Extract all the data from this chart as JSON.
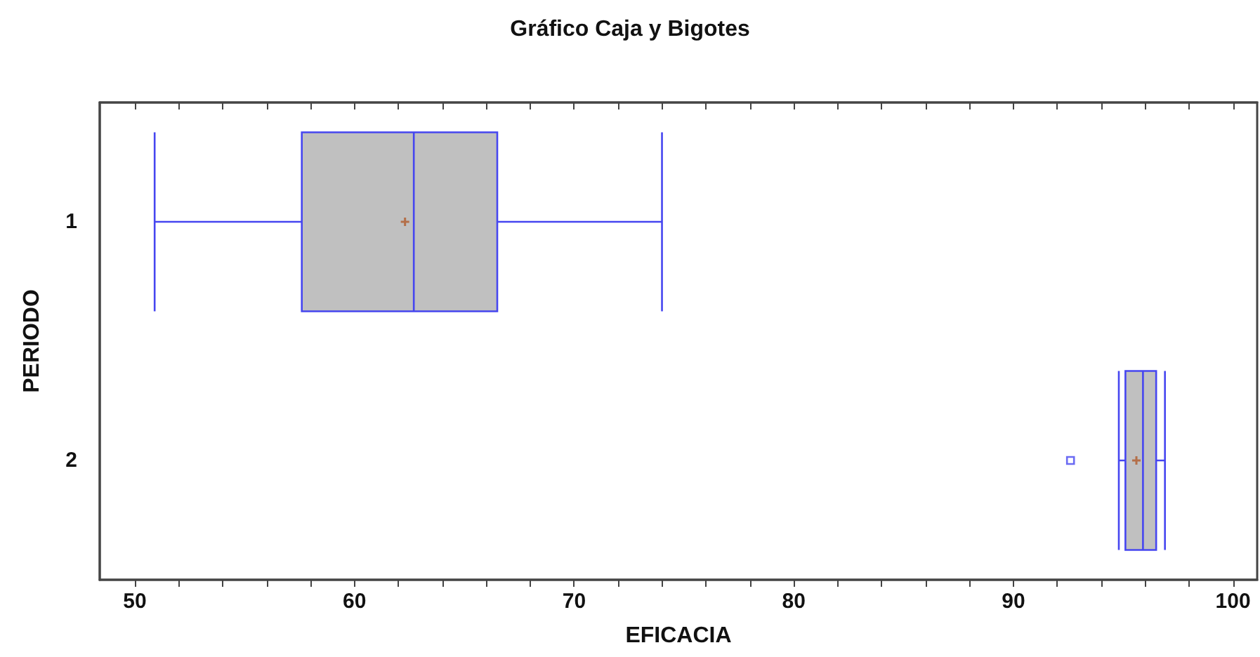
{
  "chart_data": {
    "type": "box",
    "title": "Gráfico Caja y Bigotes",
    "xlabel": "EFICACIA",
    "ylabel": "PERIODO",
    "orientation": "horizontal",
    "categories": [
      "1",
      "2"
    ],
    "series": [
      {
        "color": "#c0c0c0",
        "boxes": [
          {
            "low": 50.9,
            "q1": 57.6,
            "median": 62.7,
            "q3": 66.5,
            "high": 74.0,
            "mean": 62.3
          },
          {
            "low": 94.8,
            "q1": 95.1,
            "median": 95.9,
            "q3": 96.5,
            "high": 96.9,
            "mean": 95.6,
            "outliers": [
              92.6
            ]
          }
        ]
      }
    ],
    "xlim": [
      48.4,
      101.1
    ],
    "xticks": [
      50,
      {
        "value": 52,
        "label": null
      },
      {
        "value": 54,
        "label": null
      },
      {
        "value": 56,
        "label": null
      },
      {
        "value": 58,
        "label": null
      },
      60,
      {
        "value": 62,
        "label": null
      },
      {
        "value": 64,
        "label": null
      },
      {
        "value": 66,
        "label": null
      },
      {
        "value": 68,
        "label": null
      },
      70,
      {
        "value": 72,
        "label": null
      },
      {
        "value": 74,
        "label": null
      },
      {
        "value": 76,
        "label": null
      },
      {
        "value": 78,
        "label": null
      },
      80,
      {
        "value": 82,
        "label": null
      },
      {
        "value": 84,
        "label": null
      },
      {
        "value": 86,
        "label": null
      },
      {
        "value": 88,
        "label": null
      },
      90,
      {
        "value": 92,
        "label": null
      },
      {
        "value": 94,
        "label": null
      },
      {
        "value": 96,
        "label": null
      },
      {
        "value": 98,
        "label": null
      },
      100
    ],
    "grid": false
  }
}
